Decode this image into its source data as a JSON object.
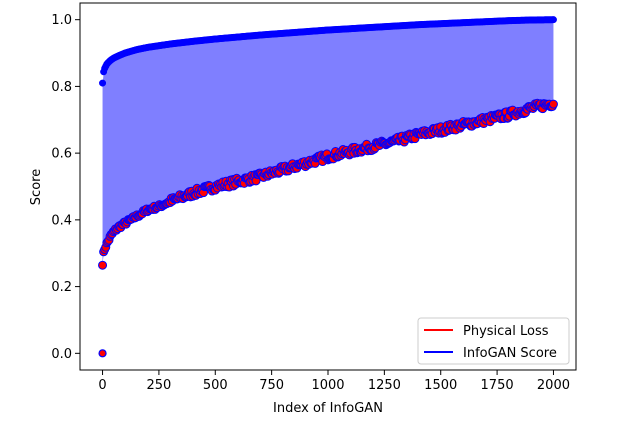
{
  "chart_data": {
    "type": "scatter",
    "title": "",
    "xlabel": "Index of InfoGAN",
    "ylabel": "Score",
    "xlim": [
      -100,
      2100
    ],
    "ylim": [
      -0.05,
      1.05
    ],
    "xticks": [
      0,
      250,
      500,
      750,
      1000,
      1250,
      1500,
      1750,
      2000
    ],
    "yticks": [
      0.0,
      0.2,
      0.4,
      0.6,
      0.8,
      1.0
    ],
    "xtick_labels": [
      "0",
      "250",
      "500",
      "750",
      "1000",
      "1250",
      "1500",
      "1750",
      "2000"
    ],
    "ytick_labels": [
      "0.0",
      "0.2",
      "0.4",
      "0.6",
      "0.8",
      "1.0"
    ],
    "grid": false,
    "legend_position": "bottom-right",
    "fill_between": {
      "color": "#0000ff",
      "alpha": 0.5
    },
    "series": [
      {
        "name": "Physical Loss",
        "color": "#ff0000",
        "marker_edge_color": "#0000ff",
        "x": [
          0,
          2,
          5,
          10,
          20,
          35,
          50,
          75,
          100,
          150,
          200,
          250,
          300,
          400,
          500,
          600,
          700,
          800,
          900,
          1000,
          1100,
          1200,
          1300,
          1400,
          1500,
          1600,
          1700,
          1800,
          1900,
          2000
        ],
        "y": [
          0.27,
          0.29,
          0.3,
          0.315,
          0.33,
          0.35,
          0.365,
          0.38,
          0.39,
          0.41,
          0.43,
          0.44,
          0.455,
          0.48,
          0.5,
          0.515,
          0.53,
          0.55,
          0.57,
          0.59,
          0.605,
          0.62,
          0.635,
          0.655,
          0.67,
          0.685,
          0.7,
          0.715,
          0.735,
          0.75
        ]
      },
      {
        "name": "InfoGAN Score",
        "color": "#0000ff",
        "marker_edge_color": "#0000ff",
        "x": [
          0,
          2,
          5,
          10,
          20,
          35,
          50,
          75,
          100,
          150,
          200,
          250,
          300,
          400,
          500,
          600,
          700,
          800,
          900,
          1000,
          1100,
          1200,
          1300,
          1400,
          1500,
          1600,
          1700,
          1800,
          1900,
          2000
        ],
        "y": [
          0.81,
          0.83,
          0.845,
          0.855,
          0.868,
          0.878,
          0.885,
          0.893,
          0.9,
          0.91,
          0.917,
          0.922,
          0.927,
          0.935,
          0.942,
          0.948,
          0.954,
          0.959,
          0.964,
          0.969,
          0.973,
          0.977,
          0.981,
          0.985,
          0.988,
          0.991,
          0.994,
          0.997,
          0.999,
          1.0
        ]
      }
    ],
    "outliers": [
      {
        "x": 0,
        "y": 0.0
      }
    ]
  }
}
